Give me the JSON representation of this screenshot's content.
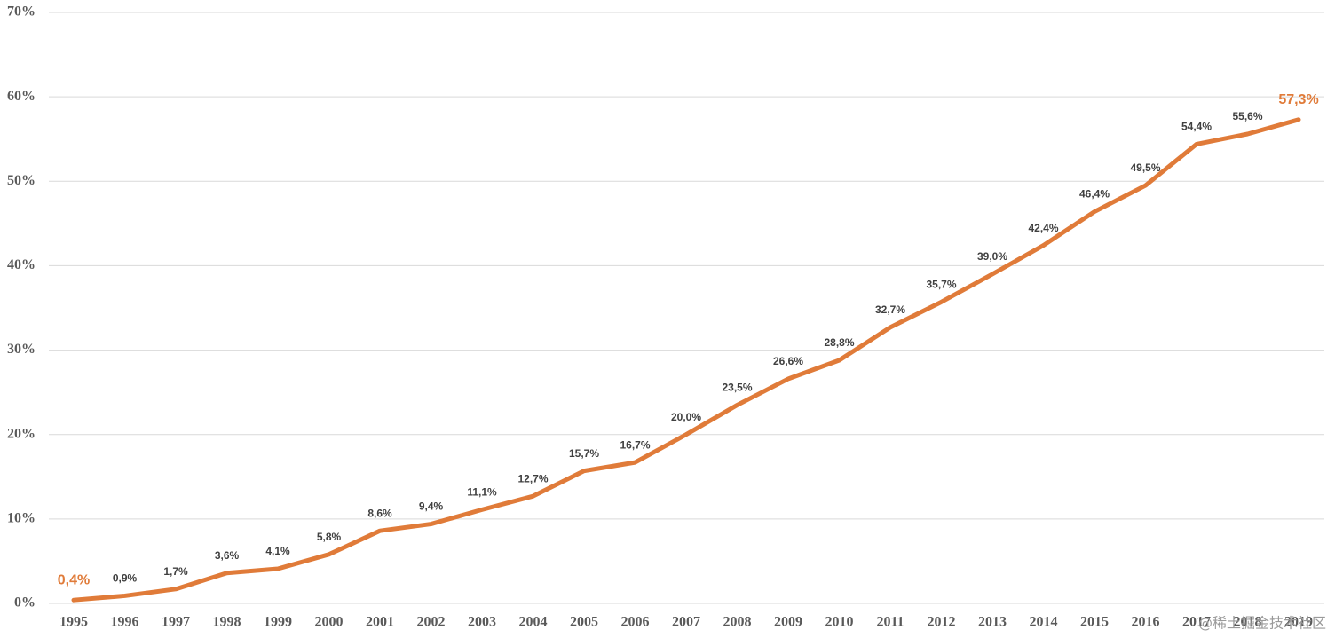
{
  "chart_data": {
    "type": "line",
    "categories": [
      "1995",
      "1996",
      "1997",
      "1998",
      "1999",
      "2000",
      "2001",
      "2002",
      "2003",
      "2004",
      "2005",
      "2006",
      "2007",
      "2008",
      "2009",
      "2010",
      "2011",
      "2012",
      "2013",
      "2014",
      "2015",
      "2016",
      "2017",
      "2018",
      "2019"
    ],
    "values": [
      0.4,
      0.9,
      1.7,
      3.6,
      4.1,
      5.8,
      8.6,
      9.4,
      11.1,
      12.7,
      15.7,
      16.7,
      20.0,
      23.5,
      26.6,
      28.8,
      32.7,
      35.7,
      39.0,
      42.4,
      46.4,
      49.5,
      54.4,
      55.6,
      57.3
    ],
    "value_labels": [
      "0,4%",
      "0,9%",
      "1,7%",
      "3,6%",
      "4,1%",
      "5,8%",
      "8,6%",
      "9,4%",
      "11,1%",
      "12,7%",
      "15,7%",
      "16,7%",
      "20,0%",
      "23,5%",
      "26,6%",
      "28,8%",
      "32,7%",
      "35,7%",
      "39,0%",
      "42,4%",
      "46,4%",
      "49,5%",
      "54,4%",
      "55,6%",
      "57,3%"
    ],
    "color": "#e07b39",
    "label_color": "#404040",
    "ylim": [
      0,
      70
    ],
    "yticks": [
      {
        "value": 0,
        "label": "0%"
      },
      {
        "value": 10,
        "label": "10%"
      },
      {
        "value": 20,
        "label": "20%"
      },
      {
        "value": 30,
        "label": "30%"
      },
      {
        "value": 40,
        "label": "40%"
      },
      {
        "value": 50,
        "label": "50%"
      },
      {
        "value": 60,
        "label": "60%"
      },
      {
        "value": 70,
        "label": "70%"
      }
    ],
    "grid": true,
    "watermark": "@稀土掘金技术社区"
  }
}
